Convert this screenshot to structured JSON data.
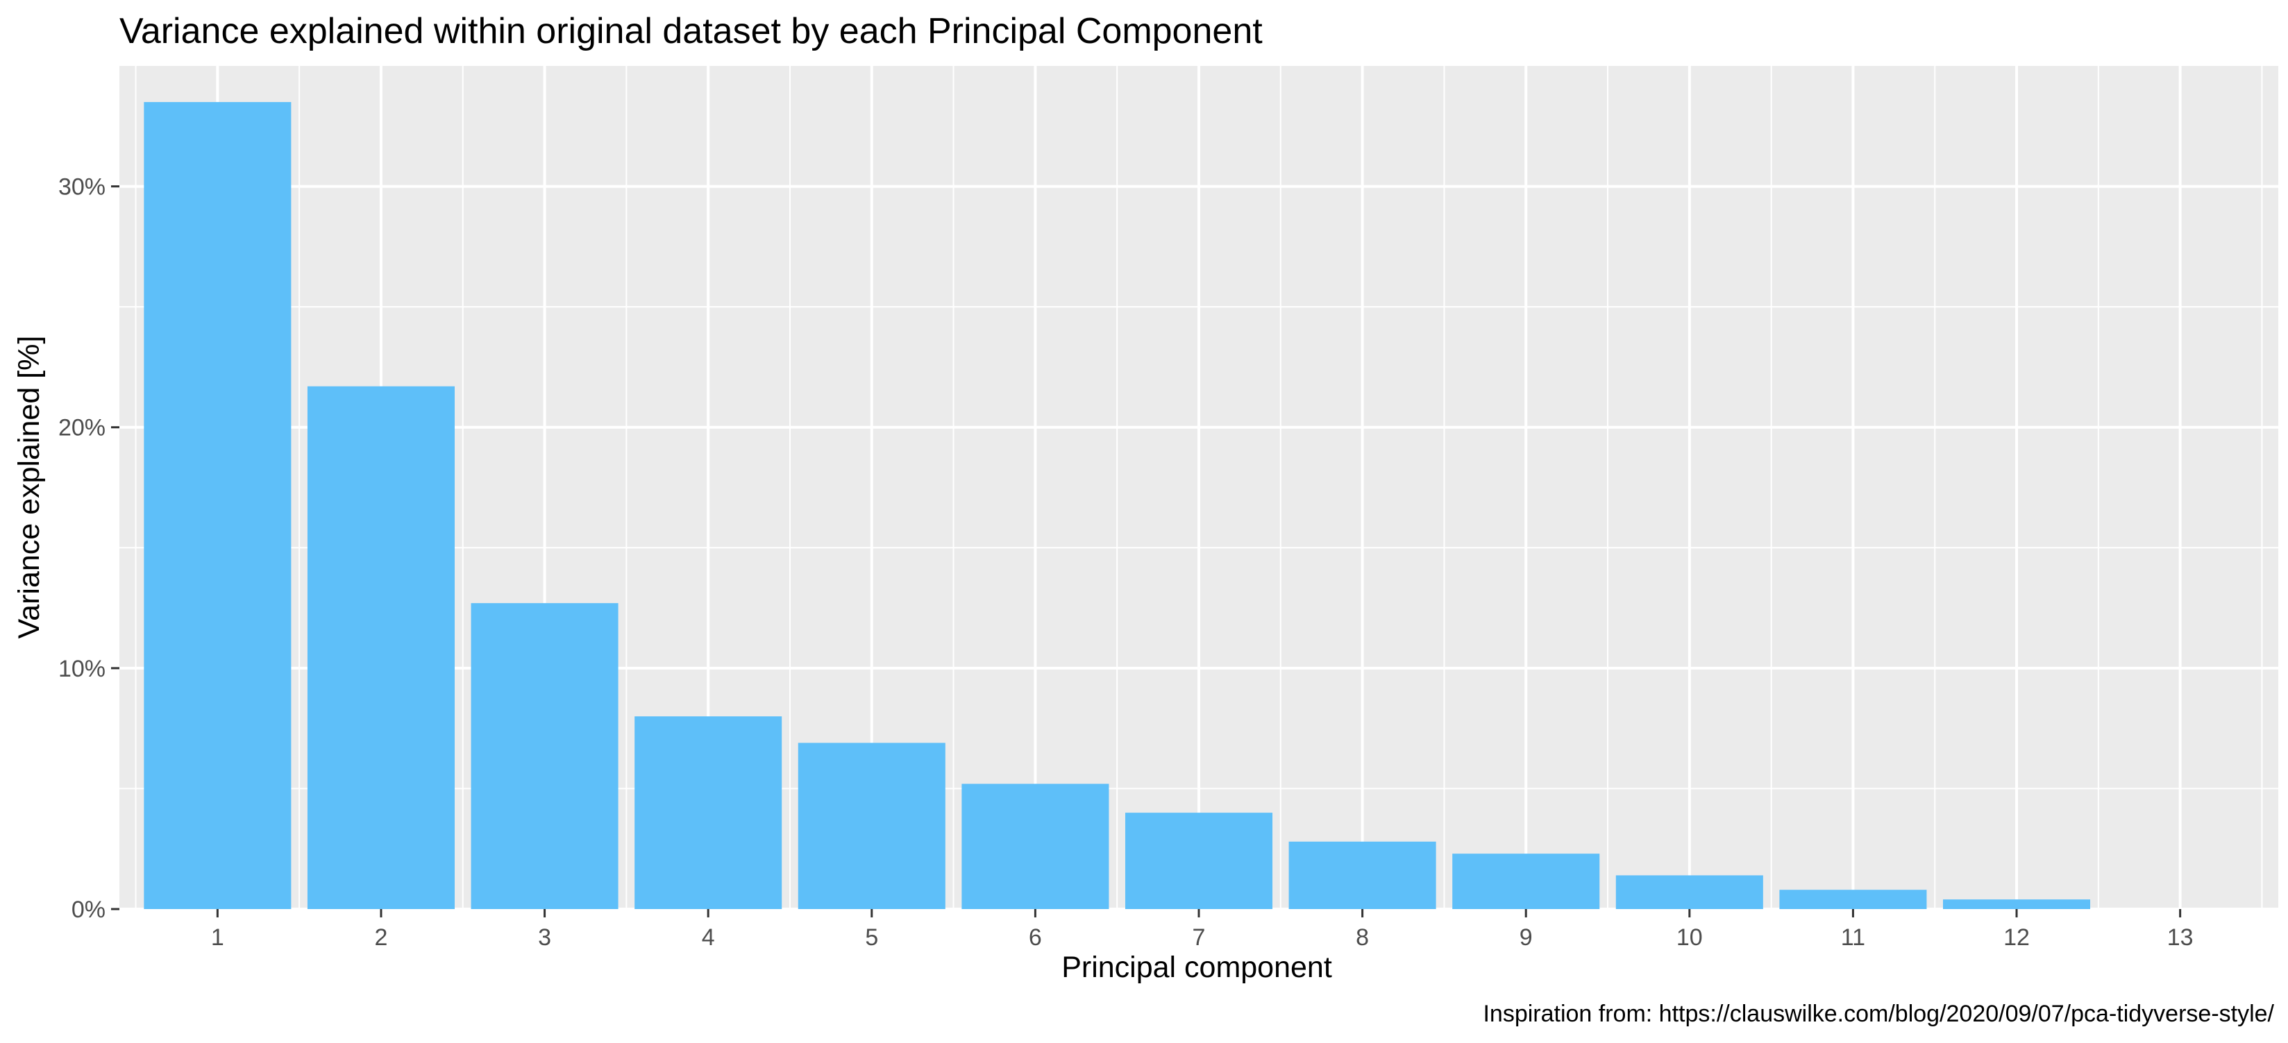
{
  "chart_data": {
    "type": "bar",
    "title": "Variance explained within original dataset by each Principal Component",
    "xlabel": "Principal component",
    "ylabel": "Variance explained [%]",
    "caption": "Inspiration from: https://clauswilke.com/blog/2020/09/07/pca-tidyverse-style/",
    "categories": [
      "1",
      "2",
      "3",
      "4",
      "5",
      "6",
      "7",
      "8",
      "9",
      "10",
      "11",
      "12",
      "13"
    ],
    "values": [
      33.5,
      21.7,
      12.7,
      8.0,
      6.9,
      5.2,
      4.0,
      2.8,
      2.3,
      1.4,
      0.8,
      0.4,
      0.0
    ],
    "y_ticks": [
      0,
      10,
      20,
      30
    ],
    "y_tick_labels": [
      "0%",
      "10%",
      "20%",
      "30%"
    ],
    "ylim": [
      0,
      35
    ],
    "grid": true,
    "legend": "none",
    "bar_color": "#5EBFF9",
    "panel_background": "#EBEBEB",
    "grid_color": "#FFFFFF"
  }
}
